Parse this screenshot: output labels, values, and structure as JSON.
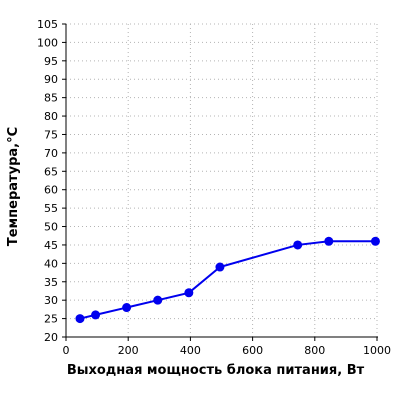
{
  "chart_data": {
    "type": "line",
    "title": "",
    "xlabel": "Выходная мощность блока питания, Вт",
    "ylabel": "Температура,°C",
    "xlim": [
      0,
      1000
    ],
    "ylim": [
      20,
      105
    ],
    "xticks": [
      0,
      200,
      400,
      600,
      800,
      1000
    ],
    "yticks": [
      20,
      25,
      30,
      35,
      40,
      45,
      50,
      55,
      60,
      65,
      70,
      75,
      80,
      85,
      90,
      95,
      100,
      105
    ],
    "grid": true,
    "series": [
      {
        "color": "#0000ee",
        "x": [
          45,
          95,
          195,
          295,
          395,
          495,
          745,
          845,
          995
        ],
        "y": [
          25,
          26,
          28,
          30,
          32,
          39,
          45,
          46,
          46
        ]
      }
    ]
  }
}
